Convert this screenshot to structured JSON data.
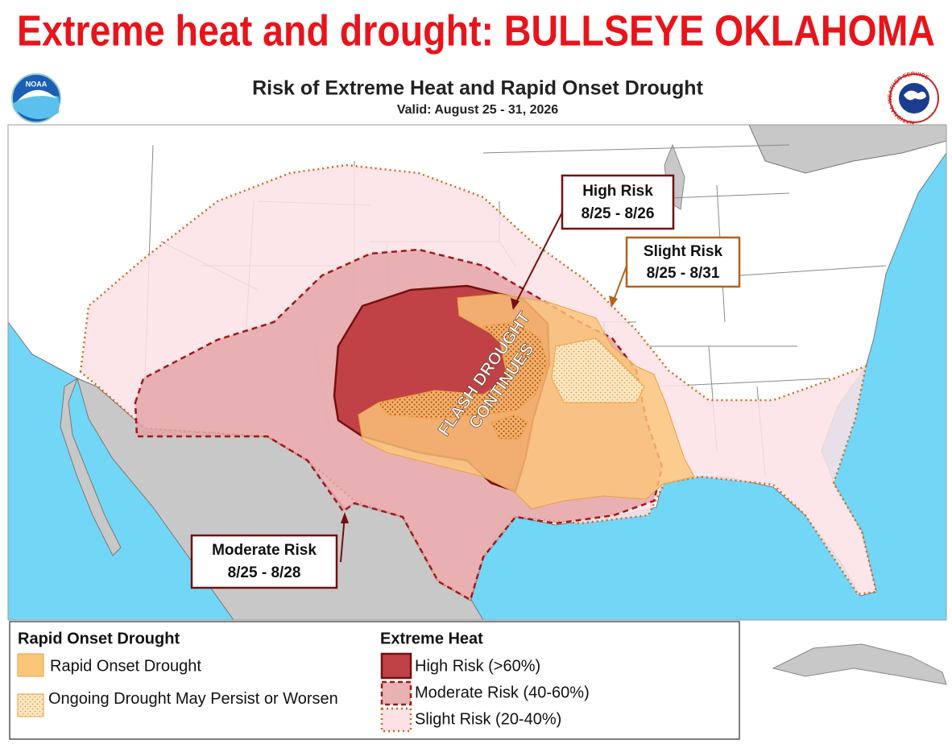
{
  "header": {
    "headline": "Extreme heat and drought: BULLSEYE OKLAHOMA"
  },
  "map": {
    "title": "Risk of Extreme Heat and Rapid Onset Drought",
    "valid": "Valid: August 25 - 31, 2026",
    "logos": {
      "noaa": "NOAA",
      "nws": "NATIONAL WEATHER SERVICE"
    },
    "callouts": [
      {
        "title": "High Risk",
        "dates": "8/25 - 8/26"
      },
      {
        "title": "Slight Risk",
        "dates": "8/25 - 8/31"
      },
      {
        "title": "Moderate Risk",
        "dates": "8/25 - 8/28"
      }
    ],
    "annotation": [
      "FLASH DROUGHT",
      "CONTINUES"
    ]
  },
  "legend": {
    "drought": {
      "heading": "Rapid Onset Drought",
      "items": [
        "Rapid Onset Drought",
        "Ongoing Drought May Persist or Worsen"
      ]
    },
    "heat": {
      "heading": "Extreme Heat",
      "items": [
        "High Risk (>60%)",
        "Moderate Risk (40-60%)",
        "Slight Risk (20-40%)"
      ]
    }
  }
}
